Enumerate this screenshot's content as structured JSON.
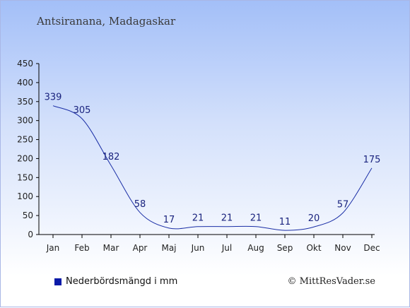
{
  "subtitle": "Antsiranana, Madagaskar",
  "legend": {
    "label": "Nederbördsmängd i mm",
    "color": "#0a1aa8"
  },
  "credit": "© MittResVader.se",
  "colors": {
    "line": "#1a2ea6",
    "axis": "#000000"
  },
  "chart_data": {
    "type": "line",
    "title": "",
    "xlabel": "",
    "ylabel": "",
    "categories": [
      "Jan",
      "Feb",
      "Mar",
      "Apr",
      "Maj",
      "Jun",
      "Jul",
      "Aug",
      "Sep",
      "Okt",
      "Nov",
      "Dec"
    ],
    "series": [
      {
        "name": "Nederbördsmängd i mm",
        "values": [
          339,
          305,
          182,
          58,
          17,
          21,
          21,
          21,
          11,
          20,
          57,
          175
        ]
      }
    ],
    "ylim": [
      0,
      450
    ],
    "yticks": [
      0,
      50,
      100,
      150,
      200,
      250,
      300,
      350,
      400,
      450
    ],
    "grid": false,
    "legend_position": "bottom-left"
  }
}
